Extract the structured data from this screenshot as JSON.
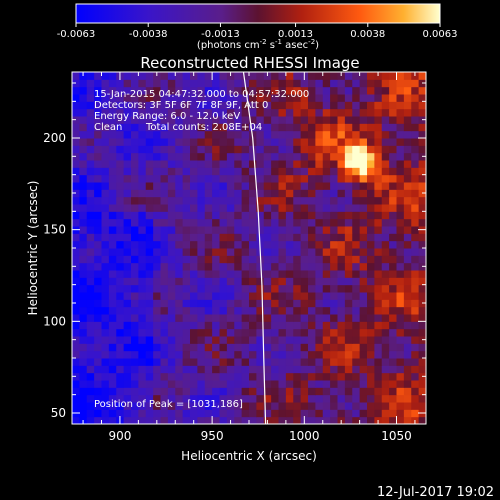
{
  "chart_data": {
    "type": "heatmap",
    "title": "Reconstructed RHESSI Image",
    "xlabel": "Heliocentric X (arcsec)",
    "ylabel": "Heliocentric Y (arcsec)",
    "xlim": [
      874,
      1066
    ],
    "ylim": [
      44,
      236
    ],
    "x_ticks": [
      900,
      950,
      1000,
      1050
    ],
    "y_ticks": [
      50,
      100,
      150,
      200
    ],
    "colorbar": {
      "ticks": [
        "-0.0063",
        "-0.0038",
        "-0.0013",
        "0.0013",
        "0.0038",
        "0.0063"
      ],
      "range": [
        -0.0063,
        0.0063
      ],
      "units_prefix": "(photons cm",
      "units_exp1": "-2",
      "units_mid": " s",
      "units_exp2": "-1",
      "units_mid2": " asec",
      "units_exp3": "-2",
      "units_suffix": ")"
    },
    "annotations": [
      "15-Jan-2015 04:47:32.000 to 04:57:32.000",
      "Detectors: 3F 5F 6F 7F 8F 9F, Att 0",
      "Energy Range: 6.0 - 12.0 keV",
      "Clean",
      "Total counts: 2.08E+04"
    ],
    "peak_label": "Position of Peak = [1031,186]",
    "peak": {
      "x": 1031,
      "y": 186,
      "value": 0.0063
    },
    "limb_arc": [
      [
        967,
        236
      ],
      [
        972,
        200
      ],
      [
        975,
        160
      ],
      [
        977,
        120
      ],
      [
        978,
        80
      ],
      [
        979,
        44
      ]
    ],
    "colors": {
      "background": "#000000",
      "text": "#ffffff"
    }
  },
  "footer": {
    "date": "12-Jul-2017 19:02"
  }
}
